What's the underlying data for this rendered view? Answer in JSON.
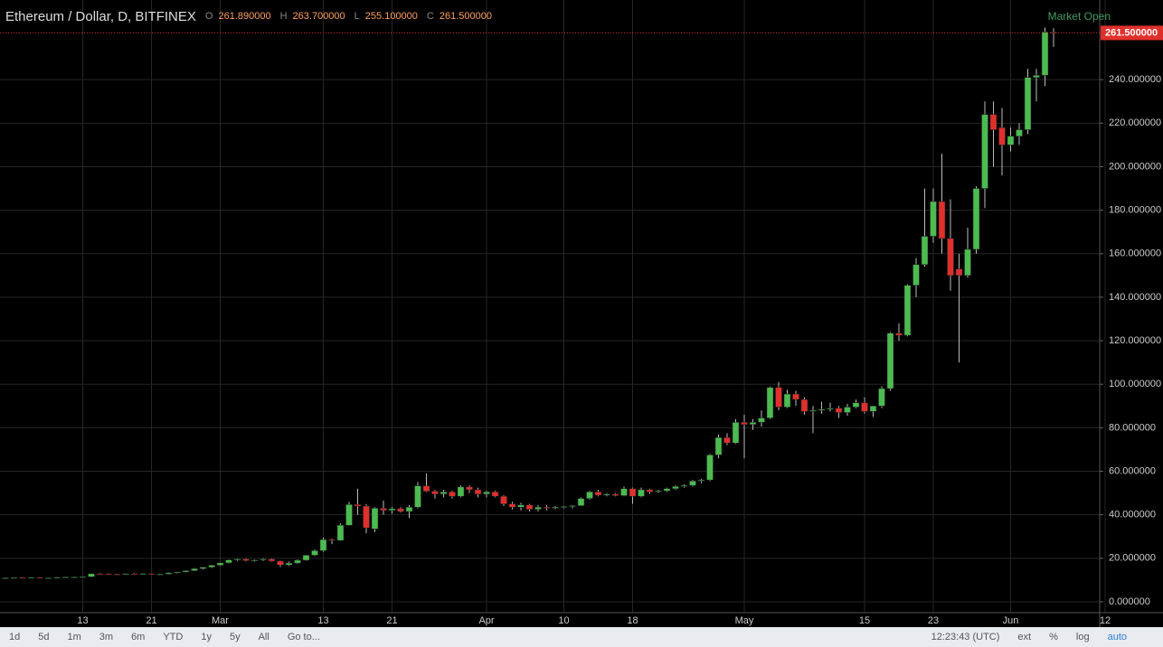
{
  "header": {
    "symbol": "Ethereum / Dollar, D, BITFINEX",
    "ohlc": [
      {
        "key": "O",
        "value": "261.890000"
      },
      {
        "key": "H",
        "value": "263.700000"
      },
      {
        "key": "L",
        "value": "255.100000"
      },
      {
        "key": "C",
        "value": "261.500000"
      }
    ],
    "status": "Market Open"
  },
  "toolbar": {
    "ranges": [
      "1d",
      "5d",
      "1m",
      "3m",
      "6m",
      "YTD",
      "1y",
      "5y",
      "All"
    ],
    "goto": "Go to...",
    "clock": "12:23:43 (UTC)",
    "options": [
      "ext",
      "%",
      "log",
      "auto"
    ]
  },
  "chart_data": {
    "type": "candlestick",
    "up_color": "#4cbb50",
    "down_color": "#e0302c",
    "grid": true,
    "categories": [
      null,
      null,
      null,
      null,
      null,
      null,
      null,
      null,
      null,
      "13",
      null,
      null,
      null,
      null,
      null,
      null,
      null,
      "21",
      null,
      null,
      null,
      null,
      null,
      null,
      null,
      "Mar",
      null,
      null,
      null,
      null,
      null,
      null,
      null,
      null,
      null,
      null,
      null,
      "13",
      null,
      null,
      null,
      null,
      null,
      null,
      null,
      "21",
      null,
      null,
      null,
      null,
      null,
      null,
      null,
      null,
      null,
      null,
      "Apr",
      null,
      null,
      null,
      null,
      null,
      null,
      null,
      null,
      "10",
      null,
      null,
      null,
      null,
      null,
      null,
      null,
      "18",
      null,
      null,
      null,
      null,
      null,
      null,
      null,
      null,
      null,
      null,
      null,
      null,
      "May",
      null,
      null,
      null,
      null,
      null,
      null,
      null,
      null,
      null,
      null,
      null,
      null,
      null,
      "15",
      null,
      null,
      null,
      null,
      null,
      null,
      null,
      "23",
      null,
      null,
      null,
      null,
      null,
      null,
      null,
      null,
      "Jun",
      null,
      null,
      null,
      null,
      null,
      null,
      null,
      null,
      null,
      null,
      "12"
    ],
    "open": [
      10.9,
      11.0,
      11.1,
      11.0,
      11.2,
      10.9,
      11.0,
      11.3,
      11.4,
      11.4,
      11.5,
      12.9,
      12.8,
      12.7,
      12.5,
      12.9,
      12.8,
      12.9,
      12.6,
      12.7,
      13.3,
      13.7,
      14.3,
      15.2,
      15.9,
      16.8,
      17.9,
      19.2,
      19.6,
      18.9,
      19.2,
      19.6,
      18.7,
      16.9,
      17.8,
      19.1,
      21.4,
      23.5,
      28.6,
      28.2,
      35.2,
      44.7,
      44.0,
      33.5,
      43.0,
      42.0,
      42.8,
      41.5,
      43.5,
      53.3,
      50.8,
      49.5,
      50.5,
      48.5,
      52.8,
      51.5,
      49.5,
      50.5,
      48.5,
      45.0,
      43.5,
      44.5,
      42.5,
      43.5,
      43.0,
      43.5,
      43.8,
      44.2,
      47.5,
      50.5,
      49.0,
      49.5,
      48.8,
      52.0,
      48.5,
      51.5,
      50.5,
      51.0,
      52.0,
      53.0,
      53.5,
      55.5,
      56.0,
      67.5,
      75.5,
      73.0,
      82.5,
      81.5,
      82.5,
      84.5,
      98.5,
      89.5,
      95.5,
      93.0,
      87.5,
      88.0,
      88.5,
      89.0,
      87.0,
      89.5,
      91.5,
      87.5,
      90.0,
      98.0,
      123.5,
      122.5,
      145.5,
      155.0,
      168.0,
      184.0,
      167.0,
      153.0,
      150.0,
      162.0,
      190.0,
      224.0,
      218.0,
      210.0,
      214.0,
      217.0,
      241.0,
      242.0,
      261.89,
      null,
      null,
      null,
      null,
      null,
      null
    ],
    "high": [
      11.2,
      11.2,
      11.3,
      11.3,
      11.4,
      11.1,
      11.5,
      11.5,
      11.5,
      11.6,
      13.0,
      13.2,
      13.0,
      12.9,
      13.0,
      13.2,
      13.1,
      13.0,
      12.9,
      13.5,
      13.8,
      14.5,
      15.5,
      16.0,
      17.0,
      18.0,
      19.5,
      20.0,
      20.0,
      19.5,
      20.1,
      19.9,
      19.0,
      18.5,
      19.5,
      21.5,
      24.0,
      29.5,
      29.0,
      36.0,
      46.0,
      52.0,
      45.0,
      43.5,
      46.5,
      43.5,
      43.5,
      44.5,
      55.0,
      59.0,
      51.5,
      51.5,
      51.0,
      53.5,
      53.5,
      52.5,
      51.0,
      51.0,
      49.0,
      46.0,
      45.5,
      45.0,
      44.5,
      44.5,
      44.0,
      44.0,
      44.5,
      48.0,
      51.0,
      51.5,
      50.0,
      50.0,
      53.0,
      52.5,
      52.5,
      52.0,
      51.5,
      52.5,
      53.5,
      54.0,
      56.0,
      56.5,
      68.0,
      77.0,
      77.5,
      84.0,
      86.0,
      84.0,
      88.0,
      99.0,
      101.0,
      97.5,
      97.0,
      94.0,
      90.0,
      92.0,
      91.5,
      90.0,
      91.0,
      93.0,
      94.0,
      90.0,
      99.0,
      124.0,
      128.0,
      146.0,
      158.0,
      190.0,
      190.0,
      206.0,
      185.0,
      160.0,
      172.0,
      191.0,
      230.0,
      230.0,
      227.0,
      218.0,
      220.0,
      245.0,
      245.0,
      264.0,
      263.7,
      null,
      null,
      null,
      null,
      null,
      null
    ],
    "low": [
      10.7,
      10.8,
      10.9,
      10.9,
      10.8,
      10.7,
      10.9,
      11.1,
      11.2,
      11.2,
      11.3,
      12.5,
      12.5,
      12.3,
      12.4,
      12.6,
      12.5,
      12.5,
      12.3,
      12.6,
      13.0,
      13.5,
      14.1,
      14.8,
      15.5,
      16.5,
      17.6,
      18.8,
      18.5,
      18.5,
      18.8,
      18.4,
      16.0,
      16.5,
      17.5,
      18.9,
      21.0,
      23.0,
      26.5,
      28.0,
      35.0,
      40.0,
      31.5,
      32.0,
      40.0,
      40.5,
      41.0,
      38.5,
      43.0,
      50.5,
      47.5,
      48.0,
      47.5,
      48.0,
      50.0,
      48.0,
      48.0,
      48.0,
      44.0,
      42.5,
      42.0,
      41.5,
      41.5,
      42.0,
      42.5,
      43.0,
      43.0,
      44.0,
      47.0,
      48.5,
      48.5,
      48.5,
      48.5,
      45.0,
      48.0,
      49.5,
      50.0,
      50.5,
      51.5,
      52.5,
      53.0,
      54.5,
      55.5,
      66.0,
      72.0,
      72.5,
      66.0,
      79.0,
      80.5,
      84.0,
      88.0,
      89.0,
      90.0,
      86.0,
      77.5,
      86.5,
      87.5,
      84.5,
      85.5,
      89.0,
      86.5,
      85.0,
      89.0,
      97.0,
      120.0,
      122.0,
      140.0,
      154.0,
      165.0,
      160.0,
      143.0,
      110.0,
      149.0,
      160.0,
      181.0,
      200.0,
      196.0,
      207.0,
      210.0,
      215.0,
      230.0,
      237.0,
      255.1,
      null,
      null,
      null,
      null,
      null,
      null
    ],
    "close": [
      11.0,
      11.1,
      11.0,
      11.2,
      10.9,
      11.0,
      11.3,
      11.4,
      11.4,
      11.5,
      12.9,
      12.8,
      12.7,
      12.5,
      12.9,
      12.8,
      12.9,
      12.6,
      12.7,
      13.3,
      13.7,
      14.3,
      15.2,
      15.9,
      16.8,
      17.9,
      19.2,
      19.6,
      18.9,
      19.2,
      19.6,
      18.7,
      16.9,
      17.8,
      19.1,
      21.4,
      23.5,
      28.6,
      28.2,
      35.2,
      44.7,
      44.0,
      34.0,
      43.0,
      42.0,
      42.8,
      41.5,
      43.5,
      53.3,
      50.8,
      49.5,
      50.5,
      48.5,
      52.8,
      51.5,
      49.5,
      50.5,
      48.5,
      45.0,
      43.5,
      44.5,
      42.5,
      43.5,
      43.0,
      43.5,
      43.8,
      44.2,
      47.5,
      50.5,
      49.0,
      49.5,
      48.8,
      52.0,
      48.5,
      51.5,
      50.5,
      51.0,
      52.0,
      53.0,
      53.5,
      55.5,
      56.0,
      67.5,
      75.5,
      73.0,
      82.5,
      81.5,
      82.5,
      84.5,
      98.5,
      89.5,
      95.5,
      93.0,
      87.5,
      88.0,
      88.5,
      89.0,
      87.0,
      89.5,
      91.5,
      87.5,
      90.0,
      98.0,
      123.5,
      122.5,
      145.5,
      155.0,
      168.0,
      184.0,
      167.0,
      150.0,
      150.0,
      162.0,
      190.0,
      224.0,
      217.0,
      210.0,
      214.0,
      217.0,
      241.0,
      242.0,
      261.9,
      261.5,
      null,
      null,
      null,
      null,
      null,
      null
    ],
    "last_price": {
      "value": 261.5,
      "label": "261.500000"
    },
    "ylim": [
      -5,
      265
    ],
    "yticks": [
      {
        "value": 0,
        "label": "0.000000"
      },
      {
        "value": 20,
        "label": "20.000000"
      },
      {
        "value": 40,
        "label": "40.000000"
      },
      {
        "value": 60,
        "label": "60.000000"
      },
      {
        "value": 80,
        "label": "80.000000"
      },
      {
        "value": 100,
        "label": "100.000000"
      },
      {
        "value": 120,
        "label": "120.000000"
      },
      {
        "value": 140,
        "label": "140.000000"
      },
      {
        "value": 160,
        "label": "160.000000"
      },
      {
        "value": 180,
        "label": "180.000000"
      },
      {
        "value": 200,
        "label": "200.000000"
      },
      {
        "value": 220,
        "label": "220.000000"
      },
      {
        "value": 240,
        "label": "240.000000"
      }
    ]
  }
}
